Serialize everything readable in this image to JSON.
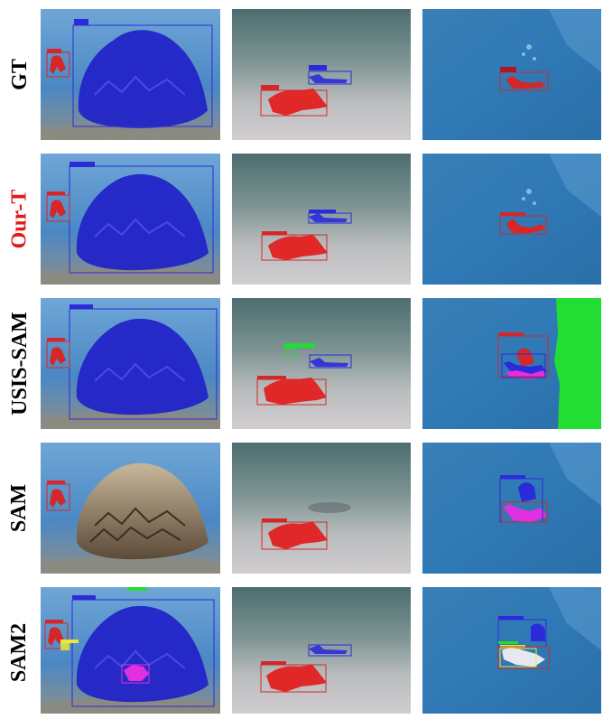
{
  "rows": [
    {
      "label": "GT",
      "highlight": false
    },
    {
      "label": "Our-T",
      "highlight": true
    },
    {
      "label": "USIS-SAM",
      "highlight": false
    },
    {
      "label": "SAM",
      "highlight": false
    },
    {
      "label": "SAM2",
      "highlight": false
    }
  ],
  "colors": {
    "red": "#d62728",
    "blue": "#2b2bd9",
    "magenta": "#e030e0",
    "green": "#22dd33",
    "yellow": "#e8e83a",
    "label_highlight": "#e31a1c"
  }
}
